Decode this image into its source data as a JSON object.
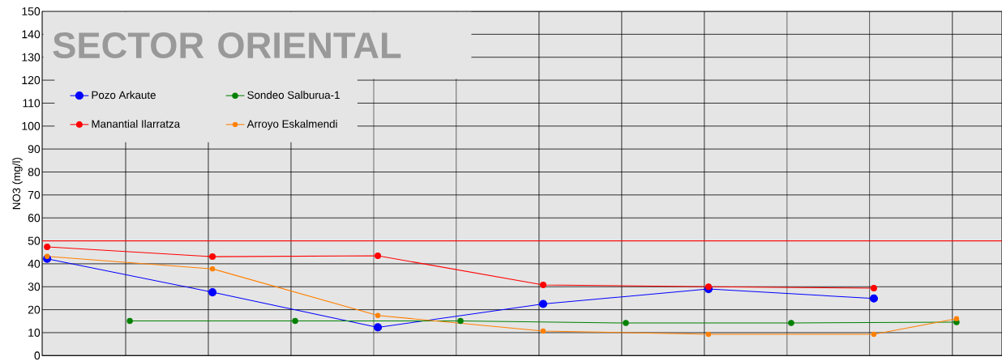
{
  "chart_data": {
    "type": "line",
    "title": "SECTOR ORIENTAL",
    "ylabel": "NO3 (mg/l)",
    "categories": [
      null,
      null,
      null,
      null,
      null,
      null,
      null,
      null,
      null,
      null,
      null,
      null
    ],
    "series": [
      {
        "name": "Pozo Arkaute",
        "color": "#0000ff",
        "values": [
          42.2,
          null,
          27.6,
          null,
          12.3,
          null,
          22.5,
          null,
          29.0,
          null,
          24.9,
          null
        ]
      },
      {
        "name": "Manantial Ilarratza",
        "color": "#ff0000",
        "values": [
          47.4,
          null,
          43.1,
          null,
          43.5,
          null,
          30.8,
          null,
          30.0,
          null,
          29.4,
          null
        ]
      },
      {
        "name": "Sondeo Salburua-1",
        "color": "#008000",
        "values": [
          null,
          15.1,
          null,
          15.1,
          null,
          15.1,
          null,
          14.2,
          null,
          14.2,
          null,
          14.6
        ]
      },
      {
        "name": "Arroyo Eskalmendi",
        "color": "#ff8000",
        "values": [
          43.2,
          null,
          37.8,
          null,
          17.5,
          null,
          10.7,
          null,
          9.3,
          null,
          9.3,
          16.1
        ]
      }
    ],
    "ylim": [
      0,
      150
    ],
    "yticks": [
      0,
      10,
      20,
      30,
      40,
      50,
      60,
      70,
      80,
      90,
      100,
      110,
      120,
      130,
      140,
      150
    ],
    "tick_labels": "y",
    "grid": true,
    "legend": "top left",
    "marker": "circle",
    "line_style": "solid",
    "ref_lines": [
      {
        "axis": "y",
        "value": 50,
        "color": "#ff0000"
      }
    ]
  }
}
